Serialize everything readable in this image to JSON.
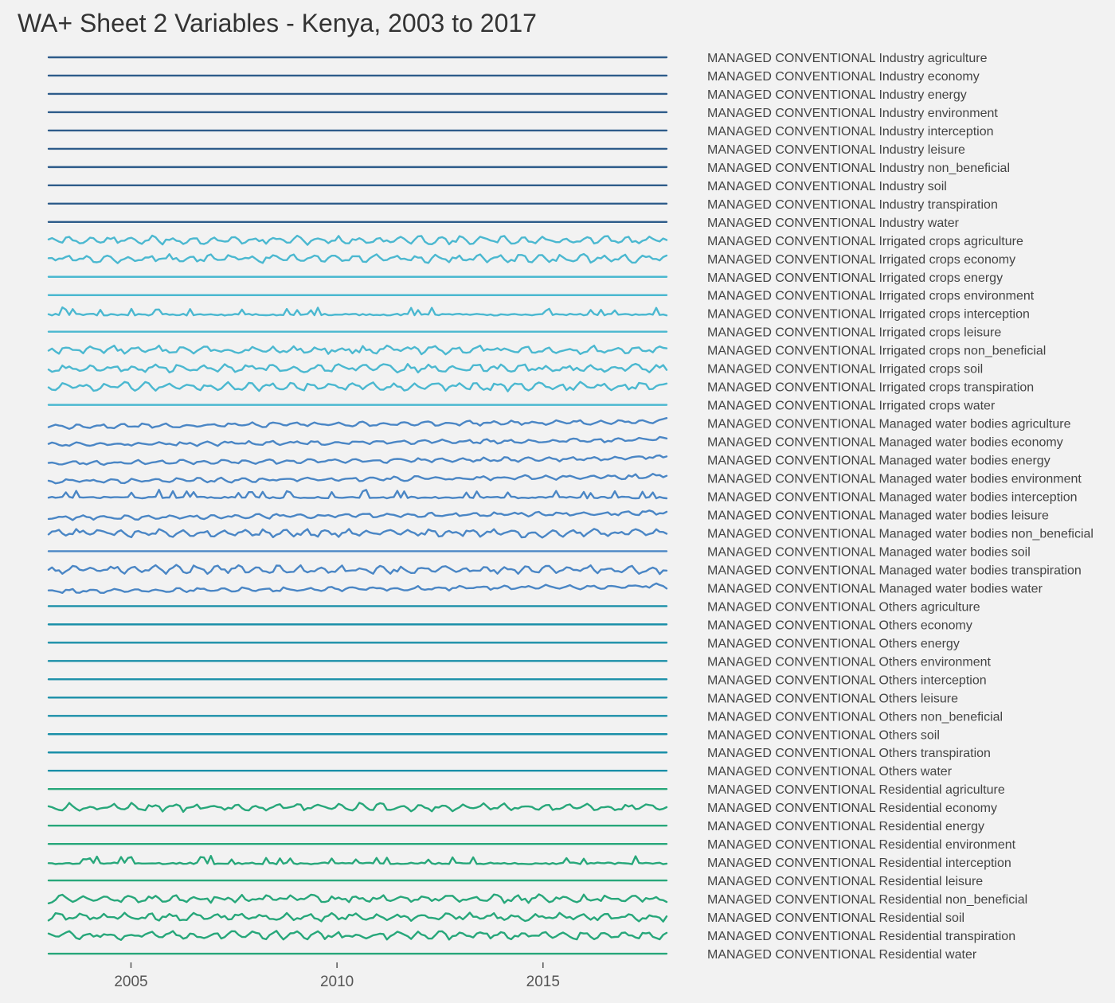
{
  "chart_data": {
    "type": "line",
    "title": "WA+ Sheet 2 Variables - Kenya, 2003 to 2017",
    "subtitle": "",
    "xlabel": "",
    "ylabel": "",
    "layout": "small-multiples, one row per series, labels on right",
    "x_range": [
      2003.0,
      2018.0
    ],
    "x_ticks": [
      2005,
      2010,
      2015
    ],
    "x_tick_labels": [
      "2005",
      "2010",
      "2015"
    ],
    "grid": false,
    "legend": "none (series labels at right of each row)",
    "pattern_shapes": {
      "flat": "constant series",
      "cropA": "seasonal oscillation, amplitude ~1",
      "cropB": "seasonal oscillation, amplitude ~0.8",
      "inter": "baseline with spikes",
      "wbTrend": "seasonal oscillation with upward trend"
    },
    "series": [
      {
        "name": "MANAGED CONVENTIONAL Industry agriculture",
        "color": "#2e5c8a",
        "pattern": "flat",
        "seed": 1
      },
      {
        "name": "MANAGED CONVENTIONAL Industry economy",
        "color": "#2e5c8a",
        "pattern": "flat",
        "seed": 2
      },
      {
        "name": "MANAGED CONVENTIONAL Industry energy",
        "color": "#2e5c8a",
        "pattern": "flat",
        "seed": 3
      },
      {
        "name": "MANAGED CONVENTIONAL Industry environment",
        "color": "#2e5c8a",
        "pattern": "flat",
        "seed": 4
      },
      {
        "name": "MANAGED CONVENTIONAL Industry interception",
        "color": "#2e5c8a",
        "pattern": "flat",
        "seed": 5
      },
      {
        "name": "MANAGED CONVENTIONAL Industry leisure",
        "color": "#2e5c8a",
        "pattern": "flat",
        "seed": 6
      },
      {
        "name": "MANAGED CONVENTIONAL Industry non_beneficial",
        "color": "#2e5c8a",
        "pattern": "flat",
        "seed": 7
      },
      {
        "name": "MANAGED CONVENTIONAL Industry soil",
        "color": "#2e5c8a",
        "pattern": "flat",
        "seed": 8
      },
      {
        "name": "MANAGED CONVENTIONAL Industry transpiration",
        "color": "#2e5c8a",
        "pattern": "flat",
        "seed": 9
      },
      {
        "name": "MANAGED CONVENTIONAL Industry water",
        "color": "#2e5c8a",
        "pattern": "flat",
        "seed": 10
      },
      {
        "name": "MANAGED CONVENTIONAL Irrigated crops agriculture",
        "color": "#4bb8d0",
        "pattern": "cropA",
        "seed": 11
      },
      {
        "name": "MANAGED CONVENTIONAL Irrigated crops economy",
        "color": "#4bb8d0",
        "pattern": "cropA",
        "seed": 12
      },
      {
        "name": "MANAGED CONVENTIONAL Irrigated crops energy",
        "color": "#4bb8d0",
        "pattern": "flat",
        "seed": 13
      },
      {
        "name": "MANAGED CONVENTIONAL Irrigated crops environment",
        "color": "#4bb8d0",
        "pattern": "flat",
        "seed": 14
      },
      {
        "name": "MANAGED CONVENTIONAL Irrigated crops interception",
        "color": "#4bb8d0",
        "pattern": "inter",
        "seed": 15
      },
      {
        "name": "MANAGED CONVENTIONAL Irrigated crops leisure",
        "color": "#4bb8d0",
        "pattern": "flat",
        "seed": 16
      },
      {
        "name": "MANAGED CONVENTIONAL Irrigated crops non_beneficial",
        "color": "#4bb8d0",
        "pattern": "cropB",
        "seed": 17
      },
      {
        "name": "MANAGED CONVENTIONAL Irrigated crops soil",
        "color": "#4bb8d0",
        "pattern": "cropB",
        "seed": 18
      },
      {
        "name": "MANAGED CONVENTIONAL Irrigated crops transpiration",
        "color": "#4bb8d0",
        "pattern": "cropA",
        "seed": 19
      },
      {
        "name": "MANAGED CONVENTIONAL Irrigated crops water",
        "color": "#4bb8d0",
        "pattern": "flat",
        "seed": 20
      },
      {
        "name": "MANAGED CONVENTIONAL Managed water bodies agriculture",
        "color": "#4a86c5",
        "pattern": "wbTrend",
        "seed": 21
      },
      {
        "name": "MANAGED CONVENTIONAL Managed water bodies economy",
        "color": "#4a86c5",
        "pattern": "wbTrend",
        "seed": 22
      },
      {
        "name": "MANAGED CONVENTIONAL Managed water bodies energy",
        "color": "#4a86c5",
        "pattern": "wbTrend",
        "seed": 23
      },
      {
        "name": "MANAGED CONVENTIONAL Managed water bodies environment",
        "color": "#4a86c5",
        "pattern": "wbTrend",
        "seed": 24
      },
      {
        "name": "MANAGED CONVENTIONAL Managed water bodies interception",
        "color": "#4a86c5",
        "pattern": "inter",
        "seed": 25
      },
      {
        "name": "MANAGED CONVENTIONAL Managed water bodies leisure",
        "color": "#4a86c5",
        "pattern": "wbTrend",
        "seed": 26
      },
      {
        "name": "MANAGED CONVENTIONAL Managed water bodies non_beneficial",
        "color": "#4a86c5",
        "pattern": "cropA",
        "seed": 27
      },
      {
        "name": "MANAGED CONVENTIONAL Managed water bodies soil",
        "color": "#4a86c5",
        "pattern": "flat",
        "seed": 28
      },
      {
        "name": "MANAGED CONVENTIONAL Managed water bodies transpiration",
        "color": "#4a86c5",
        "pattern": "cropA",
        "seed": 29
      },
      {
        "name": "MANAGED CONVENTIONAL Managed water bodies water",
        "color": "#4a86c5",
        "pattern": "wbTrend",
        "seed": 30
      },
      {
        "name": "MANAGED CONVENTIONAL Others agriculture",
        "color": "#1a8fa8",
        "pattern": "flat",
        "seed": 31
      },
      {
        "name": "MANAGED CONVENTIONAL Others economy",
        "color": "#1a8fa8",
        "pattern": "flat",
        "seed": 32
      },
      {
        "name": "MANAGED CONVENTIONAL Others energy",
        "color": "#1a8fa8",
        "pattern": "flat",
        "seed": 33
      },
      {
        "name": "MANAGED CONVENTIONAL Others environment",
        "color": "#1a8fa8",
        "pattern": "flat",
        "seed": 34
      },
      {
        "name": "MANAGED CONVENTIONAL Others interception",
        "color": "#1a8fa8",
        "pattern": "flat",
        "seed": 35
      },
      {
        "name": "MANAGED CONVENTIONAL Others leisure",
        "color": "#1a8fa8",
        "pattern": "flat",
        "seed": 36
      },
      {
        "name": "MANAGED CONVENTIONAL Others non_beneficial",
        "color": "#1a8fa8",
        "pattern": "flat",
        "seed": 37
      },
      {
        "name": "MANAGED CONVENTIONAL Others soil",
        "color": "#1a8fa8",
        "pattern": "flat",
        "seed": 38
      },
      {
        "name": "MANAGED CONVENTIONAL Others transpiration",
        "color": "#1a8fa8",
        "pattern": "flat",
        "seed": 39
      },
      {
        "name": "MANAGED CONVENTIONAL Others water",
        "color": "#1a8fa8",
        "pattern": "flat",
        "seed": 40
      },
      {
        "name": "MANAGED CONVENTIONAL Residential agriculture",
        "color": "#27a77a",
        "pattern": "flat",
        "seed": 41
      },
      {
        "name": "MANAGED CONVENTIONAL Residential economy",
        "color": "#27a77a",
        "pattern": "cropA",
        "seed": 42
      },
      {
        "name": "MANAGED CONVENTIONAL Residential energy",
        "color": "#27a77a",
        "pattern": "flat",
        "seed": 43
      },
      {
        "name": "MANAGED CONVENTIONAL Residential environment",
        "color": "#27a77a",
        "pattern": "flat",
        "seed": 44
      },
      {
        "name": "MANAGED CONVENTIONAL Residential interception",
        "color": "#27a77a",
        "pattern": "inter",
        "seed": 45
      },
      {
        "name": "MANAGED CONVENTIONAL Residential leisure",
        "color": "#27a77a",
        "pattern": "flat",
        "seed": 46
      },
      {
        "name": "MANAGED CONVENTIONAL Residential non_beneficial",
        "color": "#27a77a",
        "pattern": "cropB",
        "seed": 47
      },
      {
        "name": "MANAGED CONVENTIONAL Residential soil",
        "color": "#27a77a",
        "pattern": "cropB",
        "seed": 48
      },
      {
        "name": "MANAGED CONVENTIONAL Residential transpiration",
        "color": "#27a77a",
        "pattern": "cropA",
        "seed": 49
      },
      {
        "name": "MANAGED CONVENTIONAL Residential water",
        "color": "#27a77a",
        "pattern": "flat",
        "seed": 50
      }
    ]
  }
}
